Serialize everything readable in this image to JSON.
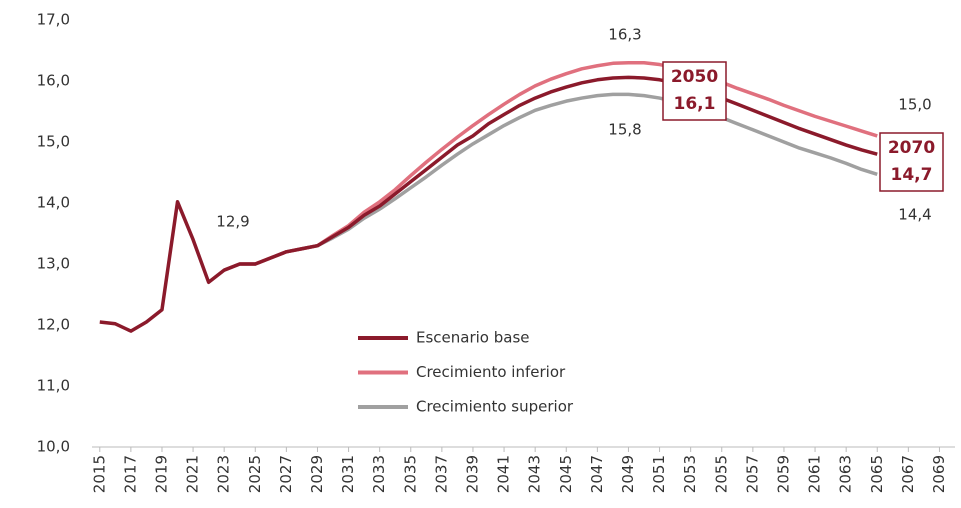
{
  "chart_data": {
    "type": "line",
    "x": [
      2015,
      2016,
      2017,
      2018,
      2019,
      2020,
      2021,
      2022,
      2023,
      2024,
      2025,
      2026,
      2027,
      2028,
      2029,
      2030,
      2031,
      2032,
      2033,
      2034,
      2035,
      2036,
      2037,
      2038,
      2039,
      2040,
      2041,
      2042,
      2043,
      2044,
      2045,
      2046,
      2047,
      2048,
      2049,
      2050,
      2051,
      2052,
      2053,
      2054,
      2055,
      2056,
      2057,
      2058,
      2059,
      2060,
      2061,
      2062,
      2063,
      2064,
      2065
    ],
    "series": [
      {
        "name": "Escenario base",
        "color": "#8b1a2b",
        "values": [
          12.05,
          12.02,
          11.9,
          12.05,
          12.25,
          14.02,
          13.4,
          12.7,
          12.9,
          13.0,
          13.0,
          13.1,
          13.2,
          13.25,
          13.3,
          13.45,
          13.6,
          13.8,
          13.95,
          14.15,
          14.35,
          14.55,
          14.75,
          14.95,
          15.1,
          15.3,
          15.45,
          15.6,
          15.72,
          15.82,
          15.9,
          15.97,
          16.02,
          16.05,
          16.06,
          16.05,
          16.02,
          15.97,
          15.9,
          15.82,
          15.72,
          15.62,
          15.52,
          15.42,
          15.32,
          15.22,
          15.13,
          15.04,
          14.95,
          14.87,
          14.8
        ]
      },
      {
        "name": "Crecimiento inferior",
        "color": "#e0707e",
        "values": [
          null,
          null,
          null,
          null,
          null,
          null,
          null,
          null,
          12.9,
          13.0,
          13.0,
          13.1,
          13.2,
          13.25,
          13.3,
          13.47,
          13.63,
          13.85,
          14.02,
          14.22,
          14.45,
          14.67,
          14.88,
          15.08,
          15.27,
          15.45,
          15.62,
          15.78,
          15.92,
          16.03,
          16.12,
          16.2,
          16.25,
          16.29,
          16.3,
          16.3,
          16.27,
          16.22,
          16.15,
          16.07,
          15.98,
          15.88,
          15.79,
          15.7,
          15.6,
          15.51,
          15.42,
          15.34,
          15.26,
          15.18,
          15.1
        ]
      },
      {
        "name": "Crecimiento superior",
        "color": "#a0a0a0",
        "values": [
          null,
          null,
          null,
          null,
          null,
          null,
          null,
          null,
          12.9,
          13.0,
          13.0,
          13.1,
          13.2,
          13.25,
          13.3,
          13.43,
          13.57,
          13.75,
          13.9,
          14.07,
          14.25,
          14.43,
          14.62,
          14.8,
          14.97,
          15.12,
          15.27,
          15.4,
          15.52,
          15.6,
          15.67,
          15.72,
          15.76,
          15.78,
          15.78,
          15.76,
          15.72,
          15.66,
          15.58,
          15.5,
          15.4,
          15.3,
          15.2,
          15.1,
          15.0,
          14.9,
          14.82,
          14.74,
          14.65,
          14.55,
          14.47
        ]
      }
    ],
    "xlim": [
      2014.5,
      2070
    ],
    "xticks": [
      2015,
      2017,
      2019,
      2021,
      2023,
      2025,
      2027,
      2029,
      2031,
      2033,
      2035,
      2037,
      2039,
      2041,
      2043,
      2045,
      2047,
      2049,
      2051,
      2053,
      2055,
      2057,
      2059,
      2061,
      2063,
      2065,
      2067,
      2069
    ],
    "ylim": [
      10,
      17
    ],
    "yticks": [
      {
        "value": 10,
        "label": "10,0"
      },
      {
        "value": 11,
        "label": "11,0"
      },
      {
        "value": 12,
        "label": "12,0"
      },
      {
        "value": 13,
        "label": "13,0"
      },
      {
        "value": 14,
        "label": "14,0"
      },
      {
        "value": 15,
        "label": "15,0"
      },
      {
        "value": 16,
        "label": "16,0"
      },
      {
        "value": 17,
        "label": "17,0"
      }
    ],
    "grid": false,
    "legend": "center",
    "annotations": [
      "16,3",
      "15,8",
      "12,9",
      "15,0",
      "14,4"
    ],
    "boxed_annotations": [
      [
        "2050",
        "16,1"
      ],
      [
        "2070",
        "14,7"
      ]
    ]
  }
}
